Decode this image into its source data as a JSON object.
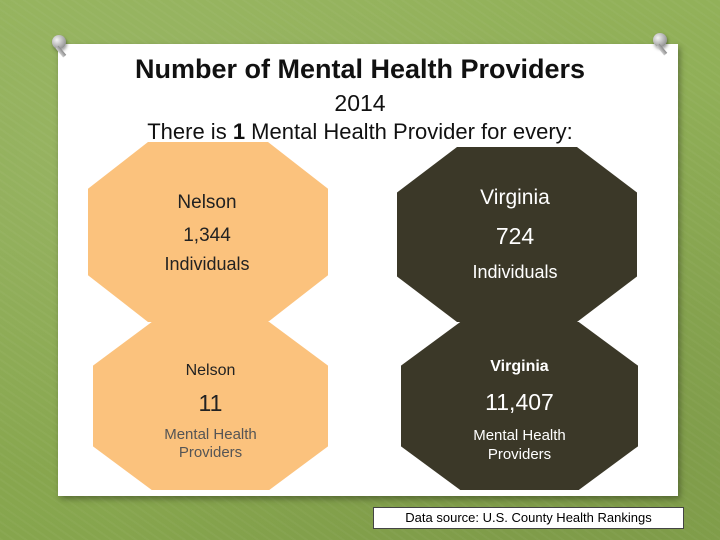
{
  "title": "Number of Mental Health Providers",
  "year": "2014",
  "subtitle": {
    "prefix": "There is ",
    "number": "1",
    "suffix": " Mental Health Provider for every:"
  },
  "row1": {
    "nelson": {
      "name": "Nelson",
      "value": "1,344",
      "unit": "Individuals"
    },
    "virginia": {
      "name": "Virginia",
      "value": "724",
      "unit": "Individuals"
    }
  },
  "row2": {
    "nelson": {
      "name": "Nelson",
      "value": "11",
      "unit_line1": "Mental Health",
      "unit_line2": "Providers"
    },
    "virginia": {
      "name": "Virginia",
      "value": "11,407",
      "unit_line1": "Mental Health",
      "unit_line2": "Providers"
    }
  },
  "source": "Data source: U.S. County Health Rankings",
  "colors": {
    "peach": "#fbc27d",
    "dark": "#3b3828",
    "background": "#8fae55"
  }
}
